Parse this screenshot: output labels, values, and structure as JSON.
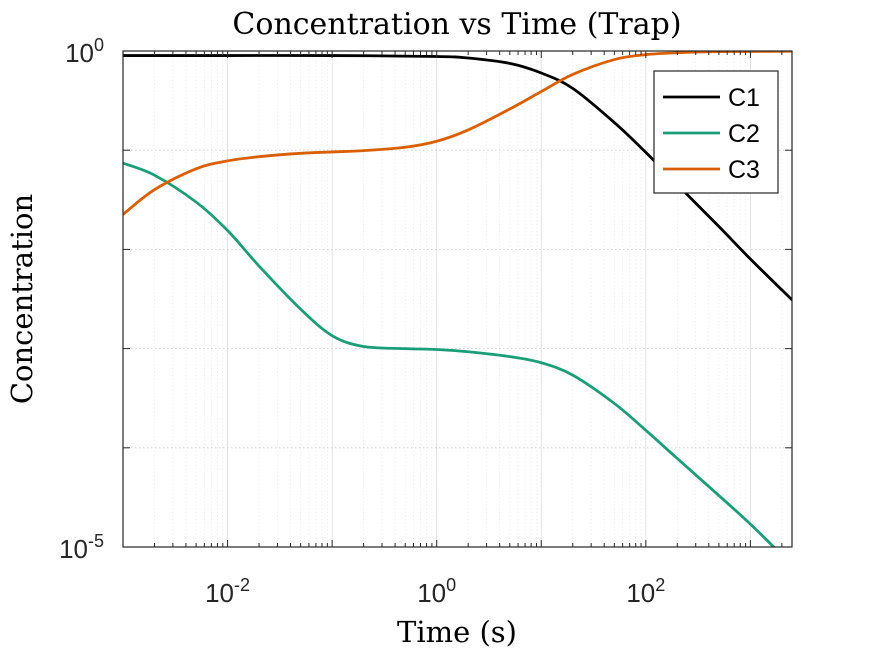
{
  "chart_data": {
    "type": "line",
    "title": "Concentration vs Time (Trap)",
    "xlabel": "Time (s)",
    "ylabel": "Concentration",
    "x_scale": "log",
    "y_scale": "log",
    "xlim": [
      0.001,
      2500
    ],
    "ylim": [
      1e-05,
      1
    ],
    "grid": true,
    "legend_position": "top-right",
    "x_ticks": [
      {
        "value": 0.01,
        "base": "10",
        "exp": "-2"
      },
      {
        "value": 1,
        "base": "10",
        "exp": "0"
      },
      {
        "value": 100,
        "base": "10",
        "exp": "2"
      }
    ],
    "y_ticks": [
      {
        "value": 1,
        "base": "10",
        "exp": "0"
      },
      {
        "value": 1e-05,
        "base": "10",
        "exp": "-5"
      }
    ],
    "series": [
      {
        "name": "C1",
        "color": "#000000",
        "x": [
          0.001,
          0.01,
          0.1,
          1,
          2,
          5,
          10,
          20,
          50,
          100,
          200,
          500,
          1000,
          2500
        ],
        "y": [
          0.9,
          0.9,
          0.9,
          0.88,
          0.85,
          0.75,
          0.6,
          0.42,
          0.19,
          0.095,
          0.045,
          0.017,
          0.008,
          0.0031
        ]
      },
      {
        "name": "C2",
        "color": "#1b9e77",
        "x": [
          0.001,
          0.002,
          0.005,
          0.01,
          0.02,
          0.05,
          0.1,
          0.2,
          0.5,
          1,
          2,
          5,
          10,
          20,
          50,
          100,
          200,
          500,
          1000,
          2500
        ],
        "y": [
          0.074,
          0.056,
          0.03,
          0.0155,
          0.0068,
          0.0025,
          0.00135,
          0.00105,
          0.001,
          0.00098,
          0.00093,
          0.00083,
          0.00072,
          0.00054,
          0.00028,
          0.00015,
          7.8e-05,
          3.3e-05,
          1.7e-05,
          6.6e-06
        ]
      },
      {
        "name": "C3",
        "color": "#d95f02",
        "x": [
          0.001,
          0.002,
          0.005,
          0.01,
          0.02,
          0.05,
          0.1,
          0.2,
          0.5,
          1,
          2,
          5,
          10,
          20,
          50,
          100,
          200,
          500,
          1000,
          2500
        ],
        "y": [
          0.0225,
          0.04,
          0.065,
          0.078,
          0.086,
          0.093,
          0.096,
          0.099,
          0.107,
          0.123,
          0.16,
          0.26,
          0.39,
          0.58,
          0.82,
          0.92,
          0.96,
          0.985,
          0.99,
          0.995
        ]
      }
    ]
  }
}
